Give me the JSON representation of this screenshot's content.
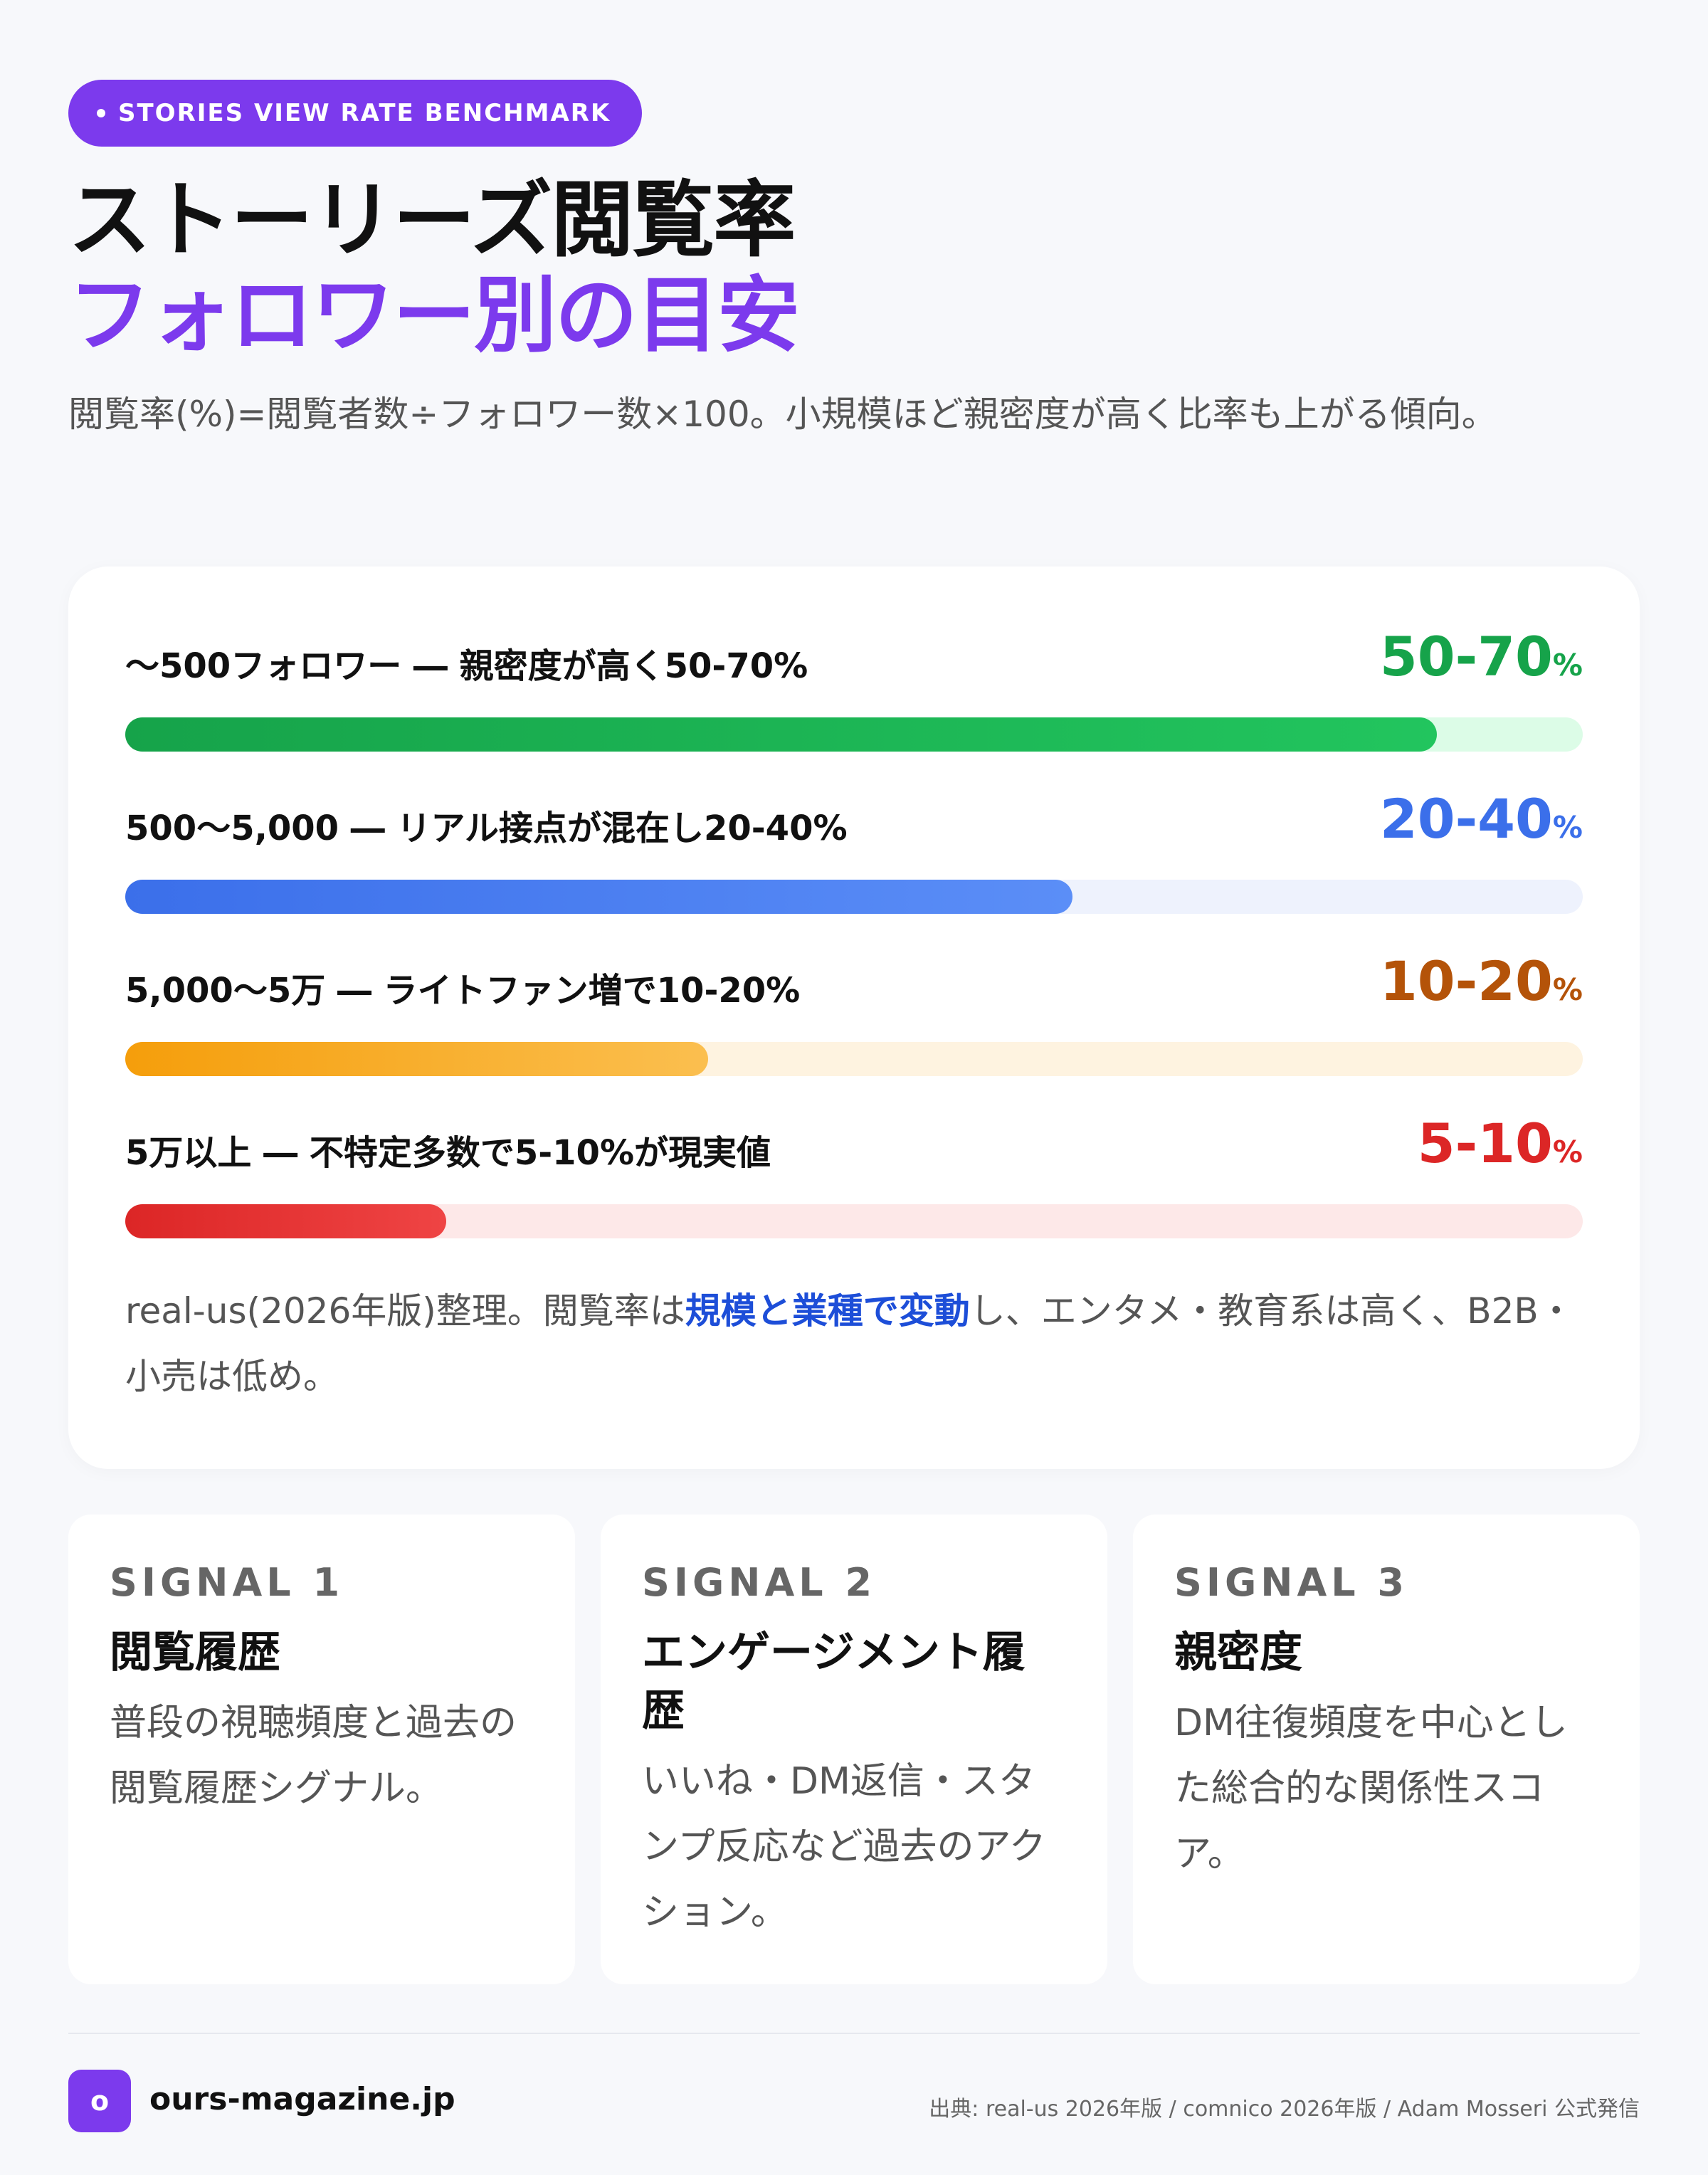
{
  "header": {
    "pill": "STORIES VIEW RATE BENCHMARK",
    "title_line1": "ストーリーズ閲覧率",
    "title_line2": "フォロワー別の目安",
    "subtitle": "閲覧率(%)=閲覧者数÷フォロワー数×100。小規模ほど親密度が高く比率も上がる傾向。"
  },
  "benchmarks": [
    {
      "label": "〜500フォロワー ― 親密度が高く50-70%",
      "value": "50-70",
      "unit": "%",
      "fill_ratio": 0.9,
      "color": "#16a34a",
      "fill_from": "#16a34a",
      "fill_to": "#22c55e",
      "track": "#dcfce7"
    },
    {
      "label": "500〜5,000 ― リアル接点が混在し20-40%",
      "value": "20-40",
      "unit": "%",
      "fill_ratio": 0.65,
      "color": "#3b6fea",
      "fill_from": "#3b6fea",
      "fill_to": "#5b8ef7",
      "track": "#eef2fd"
    },
    {
      "label": "5,000〜5万 ― ライトファン増で10-20%",
      "value": "10-20",
      "unit": "%",
      "fill_ratio": 0.4,
      "color": "#b45309",
      "fill_from": "#f59e0b",
      "fill_to": "#fbbf4f",
      "track": "#fef3e0"
    },
    {
      "label": "5万以上 ― 不特定多数で5-10%が現実値",
      "value": "5-10",
      "unit": "%",
      "fill_ratio": 0.22,
      "color": "#dc2626",
      "fill_from": "#dc2626",
      "fill_to": "#ef4444",
      "track": "#fde8e8"
    }
  ],
  "note": {
    "before": "real-us(2026年版)整理。閲覧率は",
    "highlight": "規模と業種で変動",
    "after": "し、エンタメ・教育系は高く、B2B・小売は低め。"
  },
  "signals": [
    {
      "kicker": "SIGNAL 1",
      "title": "閲覧履歴",
      "desc": "普段の視聴頻度と過去の閲覧履歴シグナル。"
    },
    {
      "kicker": "SIGNAL 2",
      "title": "エンゲージメント履歴",
      "desc": "いいね・DM返信・スタンプ反応など過去のアクション。"
    },
    {
      "kicker": "SIGNAL 3",
      "title": "親密度",
      "desc": "DM往復頻度を中心とした総合的な関係性スコア。"
    }
  ],
  "footer": {
    "logo_letter": "o",
    "site": "ours-magazine.jp",
    "source": "出典: real-us 2026年版 / comnico 2026年版 / Adam Mosseri 公式発信"
  }
}
